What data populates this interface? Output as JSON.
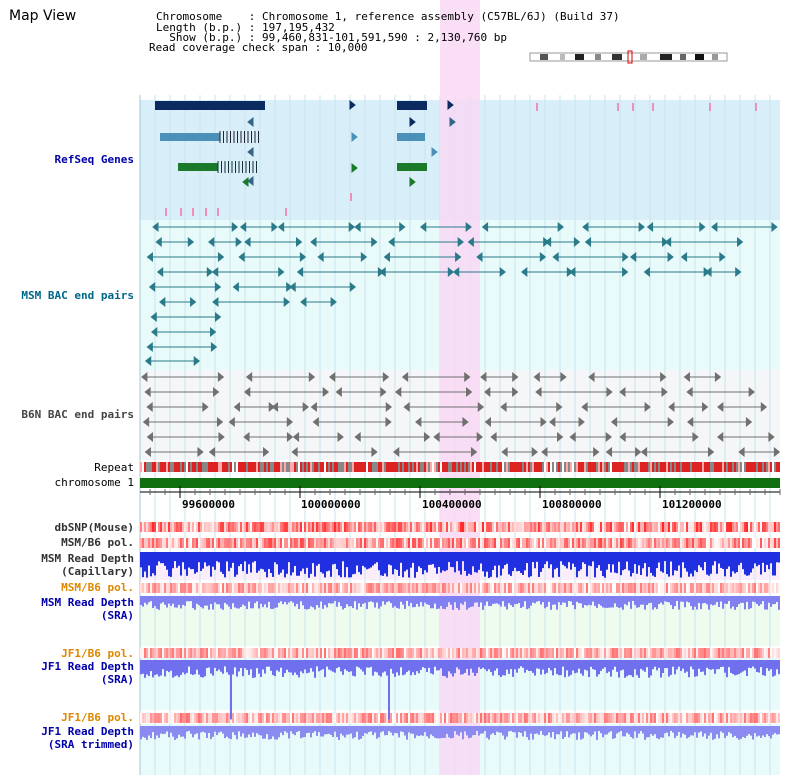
{
  "panel": {
    "title": "Map View"
  },
  "info": {
    "lines": [
      "Chromosome    : Chromosome 1, reference assembly (C57BL/6J) (Build 37)",
      "Length (b.p.) : 197,195,432",
      "  Show (b.p.) : 99,460,831-101,591,590 : 2,130,760 bp",
      "Read coverage check span : 10,000"
    ]
  },
  "tracks": {
    "refseq": "RefSeq Genes",
    "msm_bac": "MSM BAC end pairs",
    "b6n_bac": "B6N BAC end pairs",
    "repeat": "Repeat",
    "chromosome": "chromosome 1",
    "dbsnp": "dbSNP(Mouse)",
    "msm_b6_pol_1": "MSM/B6 pol.",
    "msm_depth_cap_1": "MSM Read Depth",
    "msm_depth_cap_2": "(Capillary)",
    "msm_b6_pol_2": "MSM/B6 pol.",
    "msm_depth_sra_1": "MSM Read Depth",
    "msm_depth_sra_2": "(SRA)",
    "jf1_b6_pol_1": "JF1/B6 pol.",
    "jf1_depth_sra_1": "JF1 Read Depth",
    "jf1_depth_sra_2": "(SRA)",
    "jf1_b6_pol_2": "JF1/B6 pol.",
    "jf1_depth_trim_1": "JF1 Read Depth",
    "jf1_depth_trim_2": "(SRA trimmed)"
  },
  "axis": {
    "ticks": [
      "99600000",
      "100000000",
      "100400000",
      "100800000",
      "101200000"
    ]
  },
  "colors": {
    "refseq_label": "#0000aa",
    "msm_label": "#006688",
    "b6n_label": "#444444",
    "black_label": "#000000",
    "pol_label": "#dd8800",
    "depth_label": "#0000aa",
    "dbsnp_label": "#333333"
  }
}
